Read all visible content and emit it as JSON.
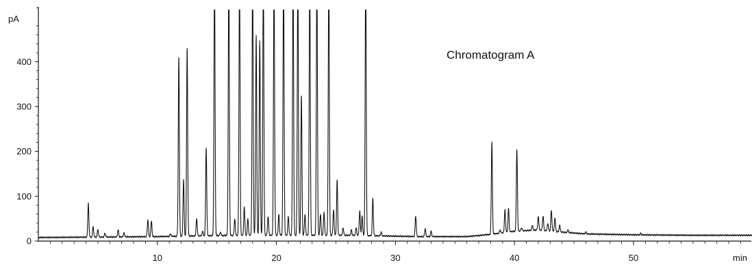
{
  "chart_data": {
    "type": "line",
    "title": "",
    "annotation": "Chromatogram A",
    "xlabel": "min",
    "ylabel": "pA",
    "xlim": [
      0,
      60
    ],
    "ylim": [
      0,
      520
    ],
    "x_ticks": [
      10,
      20,
      30,
      40,
      50
    ],
    "y_ticks": [
      0,
      100,
      200,
      300,
      400
    ],
    "grid": false,
    "legend": "none",
    "line_color": "#111111",
    "baseline": [
      [
        0,
        8
      ],
      [
        5,
        9
      ],
      [
        10,
        10
      ],
      [
        14,
        12
      ],
      [
        18,
        13
      ],
      [
        22,
        13
      ],
      [
        26,
        13
      ],
      [
        28,
        12
      ],
      [
        32,
        10
      ],
      [
        36,
        10
      ],
      [
        38,
        15
      ],
      [
        40,
        22
      ],
      [
        42,
        25
      ],
      [
        44,
        20
      ],
      [
        46,
        16
      ],
      [
        50,
        14
      ],
      [
        55,
        13
      ],
      [
        60,
        13
      ]
    ],
    "series": [
      {
        "values": [
          [
            4.2,
            84
          ],
          [
            4.6,
            33
          ],
          [
            5.0,
            26
          ],
          [
            5.6,
            18
          ],
          [
            6.7,
            25
          ],
          [
            7.2,
            19
          ],
          [
            9.2,
            48
          ],
          [
            9.5,
            45
          ],
          [
            11.1,
            16
          ],
          [
            11.8,
            410
          ],
          [
            12.2,
            137
          ],
          [
            12.5,
            431
          ],
          [
            13.3,
            50
          ],
          [
            13.8,
            22
          ],
          [
            14.1,
            209
          ],
          [
            14.8,
            600
          ],
          [
            15.3,
            20
          ],
          [
            16.0,
            600
          ],
          [
            16.5,
            50
          ],
          [
            16.9,
            600
          ],
          [
            17.3,
            77
          ],
          [
            17.6,
            50
          ],
          [
            18.0,
            600
          ],
          [
            18.3,
            458
          ],
          [
            18.6,
            445
          ],
          [
            18.9,
            600
          ],
          [
            19.3,
            55
          ],
          [
            19.8,
            600
          ],
          [
            20.2,
            60
          ],
          [
            20.6,
            600
          ],
          [
            21.0,
            55
          ],
          [
            21.4,
            600
          ],
          [
            21.8,
            600
          ],
          [
            22.1,
            325
          ],
          [
            22.4,
            60
          ],
          [
            22.8,
            600
          ],
          [
            23.4,
            600
          ],
          [
            23.7,
            60
          ],
          [
            24.0,
            65
          ],
          [
            24.4,
            600
          ],
          [
            24.8,
            70
          ],
          [
            25.1,
            135
          ],
          [
            25.6,
            30
          ],
          [
            26.3,
            25
          ],
          [
            26.7,
            30
          ],
          [
            27.0,
            68
          ],
          [
            27.2,
            56
          ],
          [
            27.5,
            600
          ],
          [
            28.1,
            95
          ],
          [
            28.8,
            20
          ],
          [
            31.7,
            57
          ],
          [
            32.5,
            28
          ],
          [
            33.0,
            22
          ],
          [
            38.1,
            221
          ],
          [
            38.8,
            25
          ],
          [
            39.2,
            70
          ],
          [
            39.5,
            72
          ],
          [
            40.2,
            205
          ],
          [
            40.6,
            30
          ],
          [
            41.5,
            35
          ],
          [
            42.0,
            55
          ],
          [
            42.4,
            57
          ],
          [
            42.8,
            40
          ],
          [
            43.1,
            68
          ],
          [
            43.4,
            52
          ],
          [
            43.8,
            35
          ],
          [
            44.5,
            25
          ],
          [
            46.0,
            20
          ],
          [
            50.6,
            17
          ]
        ]
      }
    ]
  }
}
